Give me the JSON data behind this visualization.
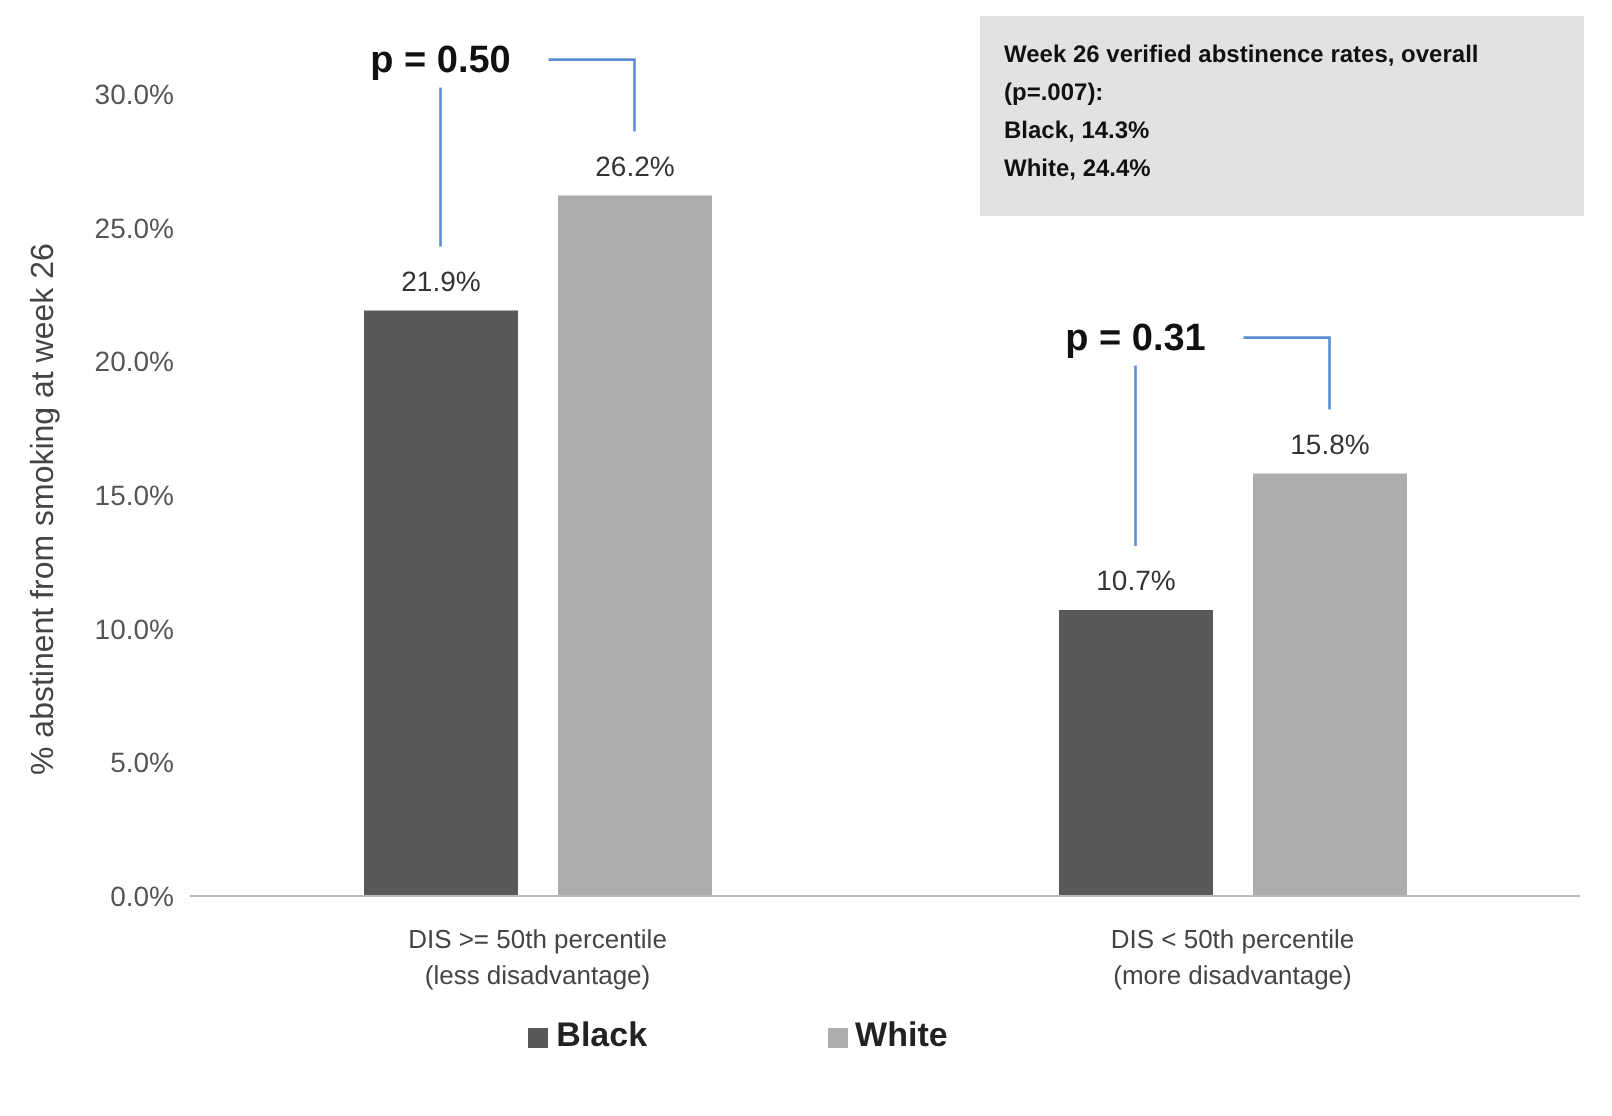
{
  "chart_data": {
    "type": "bar",
    "ylabel": "% abstinent from smoking at week 26",
    "categories": [
      "DIS >= 50th percentile\n(less disadvantage)",
      "DIS < 50th percentile\n(more disadvantage)"
    ],
    "series": [
      {
        "name": "Black",
        "color": "#595959",
        "values": [
          21.9,
          10.7
        ],
        "value_labels": [
          "21.9%",
          "10.7%"
        ]
      },
      {
        "name": "White",
        "color": "#adadad",
        "values": [
          26.2,
          15.8
        ],
        "value_labels": [
          "26.2%",
          "15.8%"
        ]
      }
    ],
    "ylim": [
      0,
      30
    ],
    "yticks": [
      {
        "value": 0,
        "label": "0.0%"
      },
      {
        "value": 5,
        "label": "5.0%"
      },
      {
        "value": 10,
        "label": "10.0%"
      },
      {
        "value": 15,
        "label": "15.0%"
      },
      {
        "value": 20,
        "label": "20.0%"
      },
      {
        "value": 25,
        "label": "25.0%"
      },
      {
        "value": 30,
        "label": "30.0%"
      }
    ],
    "grid": false,
    "legend": "bottom",
    "annotations": [
      "p = 0.50",
      "p = 0.31",
      "Week 26 verified abstinence rates, overall (p=.007):\nBlack, 14.3%\nWhite, 24.4%"
    ]
  }
}
